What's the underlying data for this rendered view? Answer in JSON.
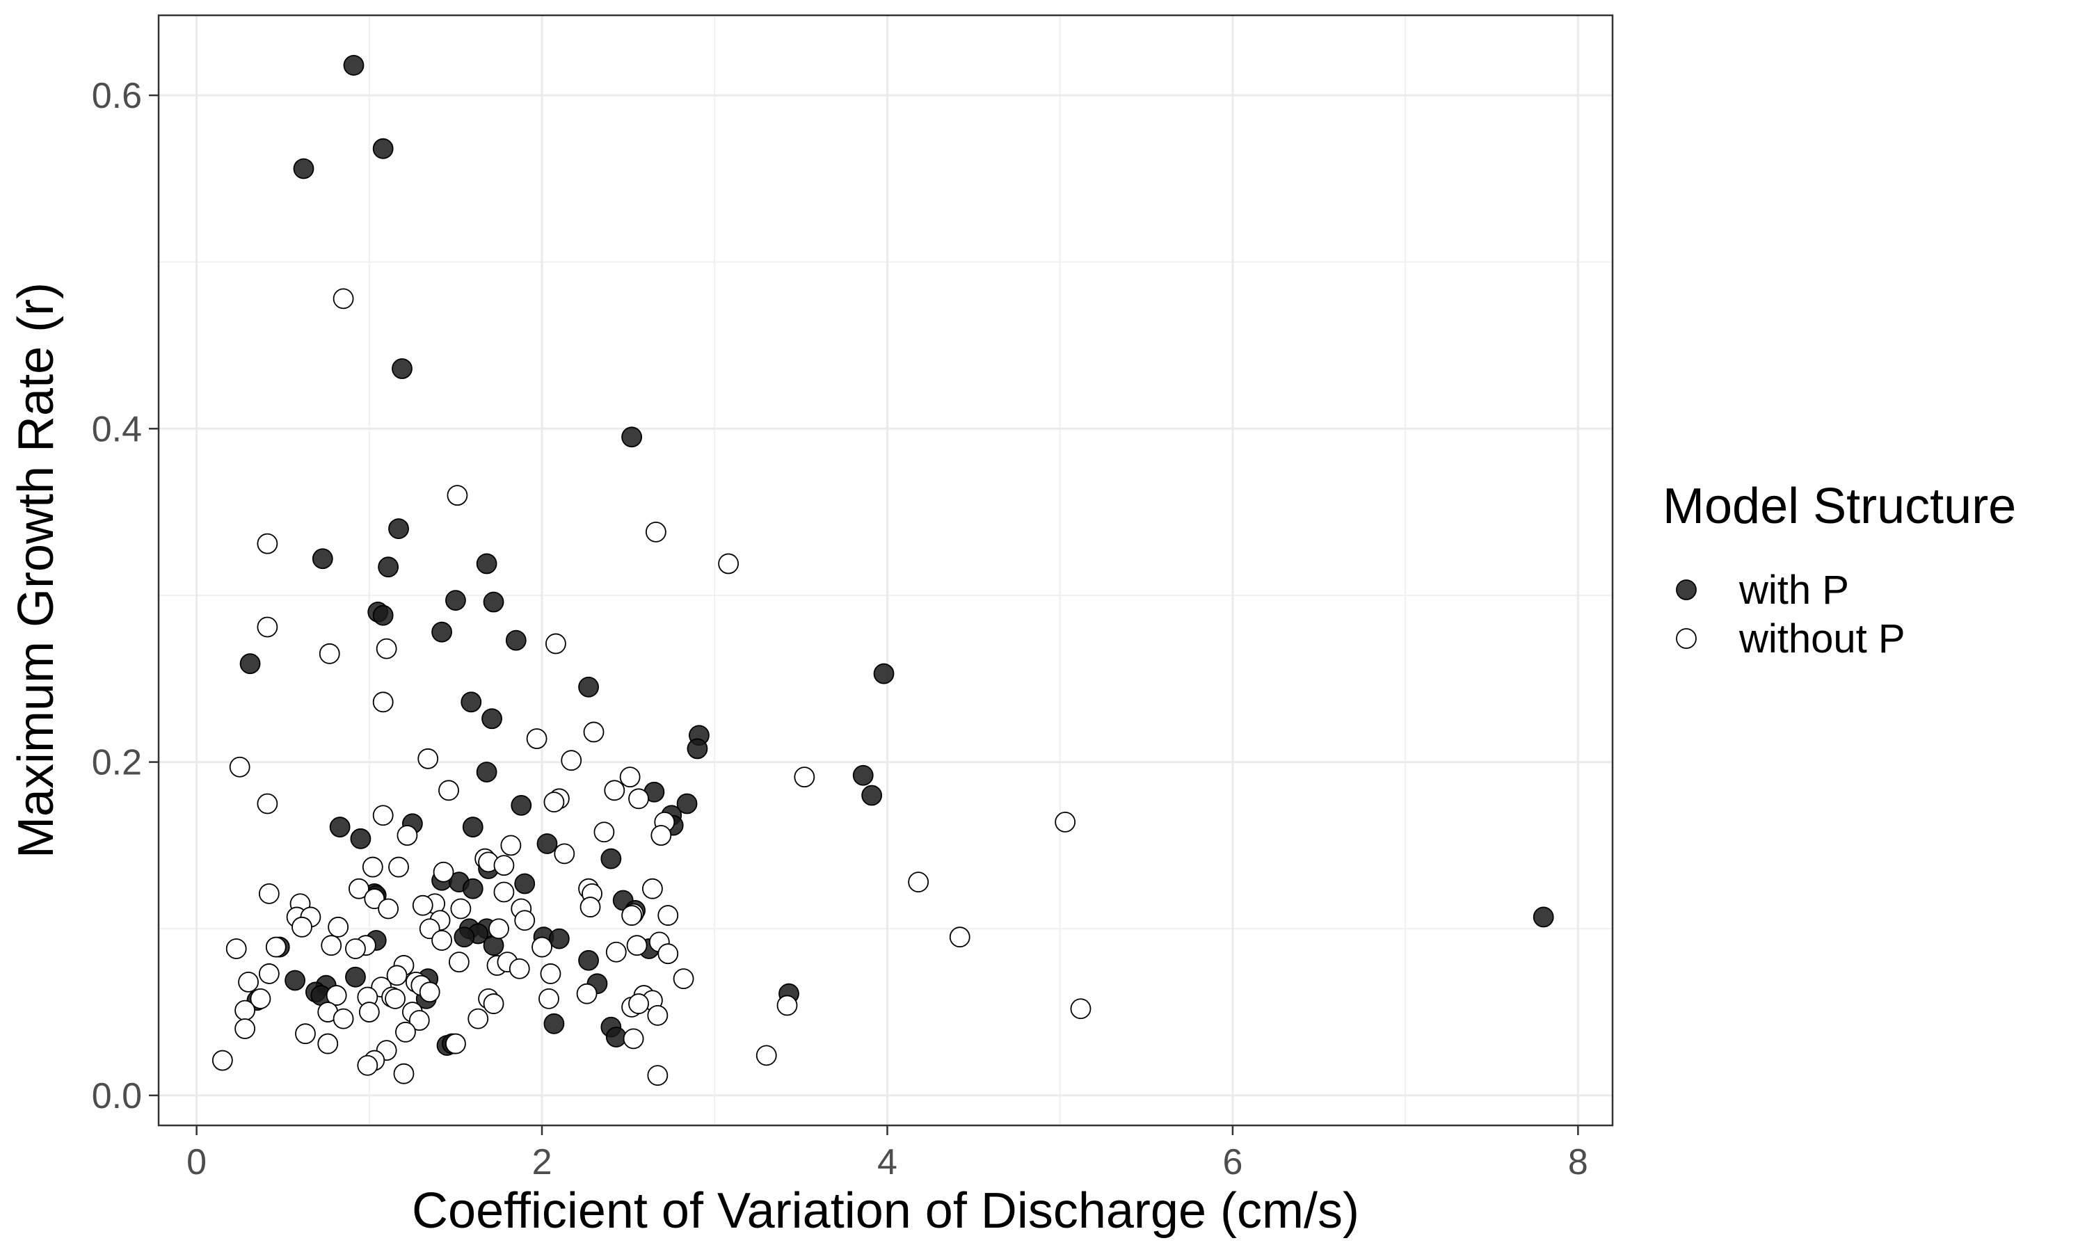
{
  "chart_data": {
    "type": "scatter",
    "title": "",
    "xlabel": "Coefficient of Variation of Discharge (cm/s)",
    "ylabel": "Maximum Growth Rate (r)",
    "xlim": [
      -0.22,
      8.2
    ],
    "ylim": [
      -0.018,
      0.648
    ],
    "x_ticks": [
      0,
      2,
      4,
      6,
      8
    ],
    "x_tick_labels": [
      "0",
      "2",
      "4",
      "6",
      "8"
    ],
    "y_ticks": [
      0.0,
      0.2,
      0.4,
      0.6
    ],
    "y_tick_labels": [
      "0.0",
      "0.2",
      "0.4",
      "0.6"
    ],
    "grid": true,
    "legend_title": "Model Structure",
    "legend_position": "right",
    "series": [
      {
        "name": "with P",
        "color": "#1a1a1a",
        "fill_opacity": 0.85,
        "marker": "filled-circle",
        "points": [
          [
            0.91,
            0.618
          ],
          [
            0.62,
            0.556
          ],
          [
            1.08,
            0.568
          ],
          [
            1.19,
            0.436
          ],
          [
            2.52,
            0.395
          ],
          [
            0.73,
            0.322
          ],
          [
            1.17,
            0.34
          ],
          [
            1.11,
            0.317
          ],
          [
            1.68,
            0.319
          ],
          [
            1.05,
            0.29
          ],
          [
            1.08,
            0.288
          ],
          [
            1.5,
            0.297
          ],
          [
            1.72,
            0.296
          ],
          [
            1.42,
            0.278
          ],
          [
            1.85,
            0.273
          ],
          [
            0.31,
            0.259
          ],
          [
            3.98,
            0.253
          ],
          [
            2.27,
            0.245
          ],
          [
            1.59,
            0.236
          ],
          [
            1.71,
            0.226
          ],
          [
            2.91,
            0.216
          ],
          [
            2.9,
            0.208
          ],
          [
            1.68,
            0.194
          ],
          [
            3.86,
            0.192
          ],
          [
            3.91,
            0.18
          ],
          [
            2.65,
            0.182
          ],
          [
            1.88,
            0.174
          ],
          [
            2.84,
            0.175
          ],
          [
            2.75,
            0.168
          ],
          [
            2.76,
            0.162
          ],
          [
            0.83,
            0.161
          ],
          [
            1.25,
            0.163
          ],
          [
            1.6,
            0.161
          ],
          [
            0.95,
            0.154
          ],
          [
            2.03,
            0.151
          ],
          [
            2.4,
            0.142
          ],
          [
            1.69,
            0.136
          ],
          [
            1.42,
            0.129
          ],
          [
            1.52,
            0.128
          ],
          [
            1.9,
            0.127
          ],
          [
            1.6,
            0.124
          ],
          [
            1.03,
            0.121
          ],
          [
            1.04,
            0.12
          ],
          [
            2.47,
            0.117
          ],
          [
            2.54,
            0.111
          ],
          [
            7.8,
            0.107
          ],
          [
            1.58,
            0.1
          ],
          [
            1.68,
            0.1
          ],
          [
            1.63,
            0.097
          ],
          [
            1.55,
            0.095
          ],
          [
            2.01,
            0.095
          ],
          [
            2.1,
            0.094
          ],
          [
            1.04,
            0.093
          ],
          [
            1.72,
            0.09
          ],
          [
            2.62,
            0.088
          ],
          [
            0.48,
            0.089
          ],
          [
            0.92,
            0.071
          ],
          [
            1.34,
            0.07
          ],
          [
            0.57,
            0.069
          ],
          [
            0.75,
            0.066
          ],
          [
            2.32,
            0.067
          ],
          [
            0.69,
            0.062
          ],
          [
            0.72,
            0.06
          ],
          [
            3.43,
            0.061
          ],
          [
            1.33,
            0.058
          ],
          [
            0.35,
            0.057
          ],
          [
            2.27,
            0.081
          ],
          [
            2.07,
            0.043
          ],
          [
            2.4,
            0.041
          ],
          [
            2.43,
            0.035
          ],
          [
            1.45,
            0.03
          ],
          [
            1.48,
            0.031
          ]
        ]
      },
      {
        "name": "without P",
        "color": "#ffffff",
        "fill_opacity": 1,
        "marker": "open-circle",
        "points": [
          [
            0.85,
            0.478
          ],
          [
            1.51,
            0.36
          ],
          [
            0.41,
            0.331
          ],
          [
            2.66,
            0.338
          ],
          [
            3.08,
            0.319
          ],
          [
            0.41,
            0.281
          ],
          [
            2.08,
            0.271
          ],
          [
            1.1,
            0.268
          ],
          [
            0.77,
            0.265
          ],
          [
            1.08,
            0.236
          ],
          [
            2.3,
            0.218
          ],
          [
            1.97,
            0.214
          ],
          [
            0.25,
            0.197
          ],
          [
            1.34,
            0.202
          ],
          [
            2.17,
            0.201
          ],
          [
            2.51,
            0.191
          ],
          [
            3.52,
            0.191
          ],
          [
            1.46,
            0.183
          ],
          [
            2.42,
            0.183
          ],
          [
            2.1,
            0.178
          ],
          [
            2.07,
            0.176
          ],
          [
            2.56,
            0.178
          ],
          [
            0.41,
            0.175
          ],
          [
            1.08,
            0.168
          ],
          [
            5.03,
            0.164
          ],
          [
            2.71,
            0.164
          ],
          [
            2.69,
            0.156
          ],
          [
            1.22,
            0.156
          ],
          [
            2.36,
            0.158
          ],
          [
            1.82,
            0.15
          ],
          [
            2.13,
            0.145
          ],
          [
            1.67,
            0.142
          ],
          [
            1.69,
            0.14
          ],
          [
            1.78,
            0.138
          ],
          [
            1.17,
            0.137
          ],
          [
            1.02,
            0.137
          ],
          [
            1.43,
            0.134
          ],
          [
            4.18,
            0.128
          ],
          [
            0.94,
            0.124
          ],
          [
            2.64,
            0.124
          ],
          [
            2.27,
            0.124
          ],
          [
            1.78,
            0.122
          ],
          [
            0.42,
            0.121
          ],
          [
            2.29,
            0.121
          ],
          [
            1.03,
            0.118
          ],
          [
            1.38,
            0.115
          ],
          [
            0.6,
            0.115
          ],
          [
            1.31,
            0.114
          ],
          [
            1.11,
            0.112
          ],
          [
            1.53,
            0.112
          ],
          [
            1.88,
            0.112
          ],
          [
            2.28,
            0.113
          ],
          [
            0.58,
            0.107
          ],
          [
            0.66,
            0.107
          ],
          [
            2.53,
            0.109
          ],
          [
            2.73,
            0.108
          ],
          [
            2.52,
            0.108
          ],
          [
            1.41,
            0.105
          ],
          [
            1.9,
            0.105
          ],
          [
            0.61,
            0.101
          ],
          [
            0.82,
            0.101
          ],
          [
            1.35,
            0.1
          ],
          [
            1.75,
            0.1
          ],
          [
            4.42,
            0.095
          ],
          [
            1.42,
            0.093
          ],
          [
            0.46,
            0.089
          ],
          [
            0.78,
            0.09
          ],
          [
            0.98,
            0.09
          ],
          [
            2.68,
            0.092
          ],
          [
            2.55,
            0.09
          ],
          [
            0.23,
            0.088
          ],
          [
            0.92,
            0.088
          ],
          [
            2.0,
            0.089
          ],
          [
            2.43,
            0.086
          ],
          [
            2.73,
            0.085
          ],
          [
            1.52,
            0.08
          ],
          [
            1.74,
            0.078
          ],
          [
            1.8,
            0.08
          ],
          [
            1.87,
            0.076
          ],
          [
            1.2,
            0.078
          ],
          [
            2.05,
            0.073
          ],
          [
            1.16,
            0.072
          ],
          [
            0.42,
            0.073
          ],
          [
            2.82,
            0.07
          ],
          [
            1.27,
            0.068
          ],
          [
            0.3,
            0.068
          ],
          [
            1.07,
            0.065
          ],
          [
            1.3,
            0.066
          ],
          [
            1.35,
            0.062
          ],
          [
            0.81,
            0.06
          ],
          [
            0.37,
            0.058
          ],
          [
            0.99,
            0.059
          ],
          [
            1.13,
            0.059
          ],
          [
            1.15,
            0.058
          ],
          [
            2.04,
            0.058
          ],
          [
            2.26,
            0.061
          ],
          [
            2.59,
            0.06
          ],
          [
            2.64,
            0.057
          ],
          [
            1.69,
            0.058
          ],
          [
            3.42,
            0.054
          ],
          [
            1.72,
            0.055
          ],
          [
            2.52,
            0.053
          ],
          [
            2.56,
            0.055
          ],
          [
            1.25,
            0.05
          ],
          [
            0.28,
            0.051
          ],
          [
            1.0,
            0.05
          ],
          [
            5.12,
            0.052
          ],
          [
            0.76,
            0.05
          ],
          [
            1.63,
            0.046
          ],
          [
            1.29,
            0.045
          ],
          [
            2.67,
            0.048
          ],
          [
            0.85,
            0.046
          ],
          [
            0.28,
            0.04
          ],
          [
            0.63,
            0.037
          ],
          [
            1.21,
            0.038
          ],
          [
            2.53,
            0.034
          ],
          [
            0.76,
            0.031
          ],
          [
            1.5,
            0.031
          ],
          [
            1.1,
            0.027
          ],
          [
            3.3,
            0.024
          ],
          [
            1.03,
            0.021
          ],
          [
            0.15,
            0.021
          ],
          [
            0.99,
            0.018
          ],
          [
            1.2,
            0.013
          ],
          [
            2.67,
            0.012
          ]
        ]
      }
    ]
  }
}
